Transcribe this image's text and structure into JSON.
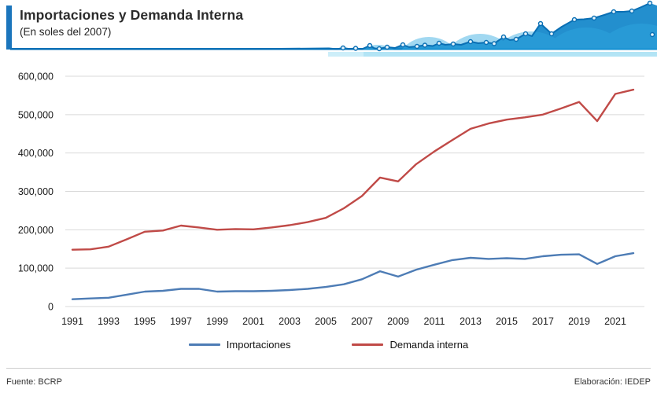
{
  "header": {
    "title": "Importaciones y Demanda Interna",
    "subtitle": "(En soles del 2007)"
  },
  "footer": {
    "source": "Fuente: BCRP",
    "elaboration": "Elaboración: IEDEP"
  },
  "colors": {
    "accent_blue": "#1b75bc",
    "decoration_main_blue": "#1086ca",
    "decoration_wave_blue": "#2fa9df",
    "decoration_band_blue": "#bfe7f5",
    "importaciones_line": "#4d7cb5",
    "demanda_line": "#c04a47",
    "gridline": "#d9d9d9",
    "axis_text": "#1a1a1a"
  },
  "chart_data": {
    "type": "line",
    "title": "Importaciones y Demanda Interna",
    "subtitle": "(En soles del 2007)",
    "x": [
      1991,
      1992,
      1993,
      1994,
      1995,
      1996,
      1997,
      1998,
      1999,
      2000,
      2001,
      2002,
      2003,
      2004,
      2005,
      2006,
      2007,
      2008,
      2009,
      2010,
      2011,
      2012,
      2013,
      2014,
      2015,
      2016,
      2017,
      2018,
      2019,
      2020,
      2021,
      2022
    ],
    "x_tick_labels": [
      "1991",
      "1993",
      "1995",
      "1997",
      "1999",
      "2001",
      "2003",
      "2005",
      "2007",
      "2009",
      "2011",
      "2013",
      "2015",
      "2017",
      "2019",
      "2021"
    ],
    "y_tick_labels": [
      "0",
      "100,000",
      "200,000",
      "300,000",
      "400,000",
      "500,000",
      "600,000"
    ],
    "ylim": [
      0,
      600000
    ],
    "grid": "horizontal",
    "legend_position": "bottom",
    "series": [
      {
        "name": "Importaciones",
        "color": "#4d7cb5",
        "values": [
          19000,
          21000,
          23000,
          31000,
          39000,
          41000,
          46000,
          46000,
          39000,
          40000,
          40000,
          41000,
          43000,
          46000,
          51000,
          58000,
          71000,
          92000,
          78000,
          96000,
          109000,
          121000,
          127000,
          124000,
          126000,
          124000,
          131000,
          135000,
          136000,
          111000,
          131000,
          139000
        ]
      },
      {
        "name": "Demanda interna",
        "color": "#c04a47",
        "values": [
          148000,
          149000,
          156000,
          175000,
          195000,
          198000,
          211000,
          206000,
          200000,
          202000,
          201000,
          206000,
          212000,
          220000,
          231000,
          256000,
          288000,
          336000,
          326000,
          371000,
          404000,
          434000,
          463000,
          477000,
          487000,
          493000,
          500000,
          516000,
          533000,
          483000,
          554000,
          565000
        ]
      }
    ]
  }
}
